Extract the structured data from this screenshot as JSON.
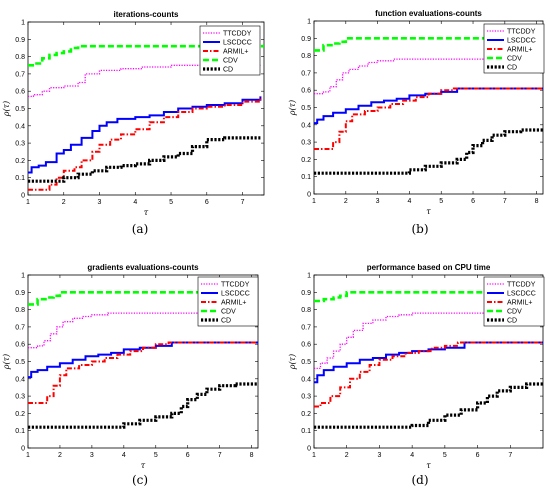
{
  "series_styles": [
    {
      "color": "#ff00ff",
      "width": 1.3,
      "dash": "1.2,1.4"
    },
    {
      "color": "#0000ff",
      "width": 2.0,
      "dash": ""
    },
    {
      "color": "#ff0000",
      "width": 2.0,
      "dash": "5,2,1.5,2"
    },
    {
      "color": "#00ff00",
      "width": 2.6,
      "dash": "6,3"
    },
    {
      "color": "#000000",
      "width": 3.2,
      "dash": "2.2,1.6"
    }
  ],
  "chart_data": [
    {
      "type": "line",
      "panel": "a",
      "title": "iterations-counts",
      "xlabel": "τ",
      "ylabel": "ρ(τ)",
      "caption": "(a)",
      "xlim": [
        1,
        7.6
      ],
      "ylim": [
        0,
        1
      ],
      "xticks": [
        "1",
        "2",
        "3",
        "4",
        "5",
        "6",
        "7"
      ],
      "yticks": [
        "0",
        "0.1",
        "0.2",
        "0.3",
        "0.4",
        "0.5",
        "0.6",
        "0.7",
        "0.8",
        "0.9",
        "1"
      ],
      "legend": "top-right",
      "series": [
        {
          "name": "TTCDDY",
          "x": [
            1,
            1.15,
            1.4,
            1.6,
            2.0,
            2.4,
            2.6,
            3.0,
            3.6,
            4.2,
            5.0,
            6.0,
            7.0,
            7.5
          ],
          "y": [
            0.57,
            0.58,
            0.6,
            0.62,
            0.63,
            0.65,
            0.7,
            0.72,
            0.73,
            0.74,
            0.75,
            0.75,
            0.75,
            0.75
          ]
        },
        {
          "name": "LSCDCC",
          "x": [
            1,
            1.1,
            1.3,
            1.5,
            1.8,
            2.0,
            2.2,
            2.5,
            2.8,
            3.0,
            3.2,
            3.5,
            4.0,
            4.4,
            4.8,
            5.2,
            5.6,
            6.0,
            6.5,
            7.0,
            7.5
          ],
          "y": [
            0.13,
            0.16,
            0.17,
            0.19,
            0.24,
            0.26,
            0.29,
            0.33,
            0.37,
            0.4,
            0.42,
            0.44,
            0.45,
            0.46,
            0.48,
            0.5,
            0.51,
            0.52,
            0.53,
            0.55,
            0.57
          ]
        },
        {
          "name": "ARMIL+",
          "x": [
            1,
            1.4,
            1.6,
            1.8,
            2.0,
            2.3,
            2.5,
            2.8,
            3.0,
            3.3,
            3.6,
            4.0,
            4.4,
            4.8,
            5.2,
            5.6,
            6.0,
            6.5,
            7.0,
            7.5
          ],
          "y": [
            0.03,
            0.03,
            0.06,
            0.1,
            0.14,
            0.16,
            0.2,
            0.25,
            0.29,
            0.32,
            0.35,
            0.38,
            0.42,
            0.45,
            0.48,
            0.5,
            0.51,
            0.52,
            0.54,
            0.57
          ]
        },
        {
          "name": "CDV",
          "x": [
            1,
            1.2,
            1.4,
            1.6,
            1.8,
            2.0,
            2.2,
            2.4,
            3.0,
            4.0,
            5.0,
            6.0,
            7.6
          ],
          "y": [
            0.75,
            0.76,
            0.79,
            0.81,
            0.82,
            0.83,
            0.85,
            0.86,
            0.86,
            0.86,
            0.86,
            0.86,
            0.86
          ]
        },
        {
          "name": "CD",
          "x": [
            1,
            1.6,
            2.0,
            2.4,
            2.8,
            3.2,
            3.6,
            4.0,
            4.4,
            4.8,
            5.2,
            5.6,
            6.0,
            6.5,
            7.0,
            7.5
          ],
          "y": [
            0.08,
            0.08,
            0.1,
            0.12,
            0.14,
            0.16,
            0.17,
            0.18,
            0.2,
            0.22,
            0.24,
            0.28,
            0.32,
            0.33,
            0.33,
            0.33
          ]
        }
      ]
    },
    {
      "type": "line",
      "panel": "b",
      "title": "function evaluations-counts",
      "xlabel": "τ",
      "ylabel": "ρ(τ)",
      "caption": "(b)",
      "xlim": [
        1,
        8.2
      ],
      "ylim": [
        0,
        1
      ],
      "xticks": [
        "1",
        "2",
        "3",
        "4",
        "5",
        "6",
        "7",
        "8"
      ],
      "yticks": [
        "0",
        "0.1",
        "0.2",
        "0.3",
        "0.4",
        "0.5",
        "0.6",
        "0.7",
        "0.8",
        "0.9",
        "1"
      ],
      "legend": "top-right",
      "series": [
        {
          "name": "TTCDDY",
          "x": [
            1,
            1.3,
            1.5,
            1.7,
            1.9,
            2.1,
            2.4,
            2.7,
            3.0,
            3.5,
            4.0,
            5.0,
            6.0,
            7.0,
            8.2
          ],
          "y": [
            0.58,
            0.59,
            0.62,
            0.66,
            0.7,
            0.72,
            0.74,
            0.76,
            0.77,
            0.78,
            0.78,
            0.78,
            0.78,
            0.78,
            0.78
          ]
        },
        {
          "name": "LSCDCC",
          "x": [
            1,
            1.1,
            1.3,
            1.6,
            2.0,
            2.4,
            2.8,
            3.2,
            3.6,
            4.0,
            4.5,
            5.0,
            5.5,
            6.0,
            7.0,
            8.2
          ],
          "y": [
            0.41,
            0.43,
            0.45,
            0.47,
            0.49,
            0.51,
            0.53,
            0.54,
            0.55,
            0.57,
            0.58,
            0.59,
            0.61,
            0.61,
            0.61,
            0.61
          ]
        },
        {
          "name": "ARMIL+",
          "x": [
            1,
            1.4,
            1.6,
            1.8,
            2.0,
            2.2,
            2.6,
            3.0,
            3.4,
            3.8,
            4.2,
            4.6,
            5.0,
            5.4,
            6.0,
            7.0,
            8.2
          ],
          "y": [
            0.26,
            0.26,
            0.3,
            0.36,
            0.42,
            0.46,
            0.48,
            0.5,
            0.52,
            0.54,
            0.56,
            0.58,
            0.6,
            0.61,
            0.61,
            0.61,
            0.61
          ]
        },
        {
          "name": "CDV",
          "x": [
            1,
            1.3,
            1.6,
            1.8,
            2.0,
            2.5,
            3.0,
            4.0,
            5.0,
            6.0,
            7.0,
            8.2
          ],
          "y": [
            0.83,
            0.86,
            0.87,
            0.88,
            0.9,
            0.9,
            0.9,
            0.9,
            0.9,
            0.9,
            0.9,
            0.9
          ]
        },
        {
          "name": "CD",
          "x": [
            1,
            2.0,
            3.0,
            3.6,
            4.0,
            4.5,
            5.0,
            5.5,
            5.8,
            6.0,
            6.3,
            6.6,
            7.0,
            7.5,
            8.2
          ],
          "y": [
            0.12,
            0.12,
            0.12,
            0.12,
            0.14,
            0.16,
            0.18,
            0.2,
            0.24,
            0.28,
            0.31,
            0.34,
            0.36,
            0.37,
            0.37
          ]
        }
      ]
    },
    {
      "type": "line",
      "panel": "c",
      "title": "gradients evaluations-counts",
      "xlabel": "τ",
      "ylabel": "ρ(τ)",
      "caption": "(c)",
      "xlim": [
        1,
        8.2
      ],
      "ylim": [
        0,
        1
      ],
      "xticks": [
        "1",
        "2",
        "3",
        "4",
        "5",
        "6",
        "7",
        "8"
      ],
      "yticks": [
        "0",
        "0.1",
        "0.2",
        "0.3",
        "0.4",
        "0.5",
        "0.6",
        "0.7",
        "0.8",
        "0.9",
        "1"
      ],
      "legend": "top-right",
      "series": [
        {
          "name": "TTCDDY",
          "x": [
            1,
            1.3,
            1.5,
            1.7,
            1.9,
            2.1,
            2.4,
            2.7,
            3.0,
            3.5,
            4.0,
            5.0,
            6.0,
            7.0,
            8.2
          ],
          "y": [
            0.58,
            0.59,
            0.62,
            0.66,
            0.7,
            0.73,
            0.75,
            0.76,
            0.77,
            0.78,
            0.78,
            0.78,
            0.78,
            0.78,
            0.78
          ]
        },
        {
          "name": "LSCDCC",
          "x": [
            1,
            1.1,
            1.3,
            1.6,
            2.0,
            2.4,
            2.8,
            3.2,
            3.6,
            4.0,
            4.5,
            5.0,
            5.5,
            6.0,
            7.0,
            8.2
          ],
          "y": [
            0.41,
            0.44,
            0.45,
            0.47,
            0.49,
            0.51,
            0.53,
            0.54,
            0.55,
            0.57,
            0.58,
            0.59,
            0.61,
            0.61,
            0.61,
            0.61
          ]
        },
        {
          "name": "ARMIL+",
          "x": [
            1,
            1.4,
            1.6,
            1.8,
            2.0,
            2.2,
            2.6,
            3.0,
            3.4,
            3.8,
            4.2,
            4.6,
            5.0,
            5.4,
            6.0,
            7.0,
            8.2
          ],
          "y": [
            0.26,
            0.26,
            0.3,
            0.36,
            0.42,
            0.46,
            0.48,
            0.5,
            0.52,
            0.54,
            0.56,
            0.58,
            0.6,
            0.61,
            0.61,
            0.61,
            0.61
          ]
        },
        {
          "name": "CDV",
          "x": [
            1,
            1.3,
            1.6,
            1.8,
            2.0,
            2.5,
            3.0,
            4.0,
            5.0,
            6.0,
            7.0,
            8.2
          ],
          "y": [
            0.83,
            0.86,
            0.87,
            0.88,
            0.9,
            0.9,
            0.9,
            0.9,
            0.9,
            0.9,
            0.9,
            0.9
          ]
        },
        {
          "name": "CD",
          "x": [
            1,
            2.0,
            3.0,
            3.6,
            4.0,
            4.5,
            5.0,
            5.5,
            5.8,
            6.0,
            6.3,
            6.6,
            7.0,
            7.5,
            8.2
          ],
          "y": [
            0.12,
            0.12,
            0.12,
            0.12,
            0.14,
            0.16,
            0.18,
            0.2,
            0.24,
            0.28,
            0.31,
            0.34,
            0.36,
            0.37,
            0.37
          ]
        }
      ]
    },
    {
      "type": "line",
      "panel": "d",
      "title": "performance based on CPU time",
      "xlabel": "τ",
      "ylabel": "ρ(τ)",
      "caption": "(d)",
      "xlim": [
        1,
        8
      ],
      "ylim": [
        0,
        1
      ],
      "xticks": [
        "1",
        "2",
        "3",
        "4",
        "5",
        "6",
        "7"
      ],
      "yticks": [
        "0",
        "0.1",
        "0.2",
        "0.3",
        "0.4",
        "0.5",
        "0.6",
        "0.7",
        "0.8",
        "0.9",
        "1"
      ],
      "legend": "top-right",
      "series": [
        {
          "name": "TTCDDY",
          "x": [
            1,
            1.2,
            1.4,
            1.6,
            1.8,
            2.0,
            2.2,
            2.5,
            2.8,
            3.2,
            3.6,
            4.0,
            5.0,
            6.0,
            7.0,
            8.0
          ],
          "y": [
            0.46,
            0.49,
            0.52,
            0.56,
            0.6,
            0.64,
            0.68,
            0.72,
            0.74,
            0.76,
            0.77,
            0.78,
            0.78,
            0.78,
            0.78,
            0.78
          ]
        },
        {
          "name": "LSCDCC",
          "x": [
            1,
            1.1,
            1.3,
            1.6,
            2.0,
            2.4,
            2.8,
            3.2,
            3.6,
            4.0,
            4.5,
            5.0,
            5.5,
            5.6,
            6.0,
            7.0,
            8.0
          ],
          "y": [
            0.38,
            0.42,
            0.45,
            0.47,
            0.49,
            0.51,
            0.52,
            0.54,
            0.55,
            0.56,
            0.57,
            0.58,
            0.58,
            0.61,
            0.61,
            0.61,
            0.61
          ]
        },
        {
          "name": "ARMIL+",
          "x": [
            1,
            1.2,
            1.5,
            1.8,
            2.1,
            2.4,
            2.7,
            3.0,
            3.4,
            3.8,
            4.2,
            4.6,
            5.0,
            5.4,
            6.0,
            7.0,
            8.0
          ],
          "y": [
            0.24,
            0.26,
            0.3,
            0.35,
            0.4,
            0.44,
            0.48,
            0.51,
            0.53,
            0.55,
            0.56,
            0.58,
            0.59,
            0.61,
            0.61,
            0.61,
            0.61
          ]
        },
        {
          "name": "CDV",
          "x": [
            1,
            1.3,
            1.6,
            1.8,
            2.0,
            2.5,
            3.0,
            4.0,
            5.0,
            6.0,
            7.0,
            8.0
          ],
          "y": [
            0.85,
            0.86,
            0.87,
            0.88,
            0.9,
            0.9,
            0.9,
            0.9,
            0.9,
            0.9,
            0.9,
            0.9
          ]
        },
        {
          "name": "CD",
          "x": [
            1,
            2.0,
            3.0,
            3.6,
            4.0,
            4.5,
            5.0,
            5.5,
            6.0,
            6.3,
            6.6,
            7.0,
            7.5,
            8.0
          ],
          "y": [
            0.12,
            0.12,
            0.12,
            0.12,
            0.13,
            0.16,
            0.19,
            0.22,
            0.26,
            0.3,
            0.33,
            0.35,
            0.37,
            0.37
          ]
        }
      ]
    }
  ]
}
